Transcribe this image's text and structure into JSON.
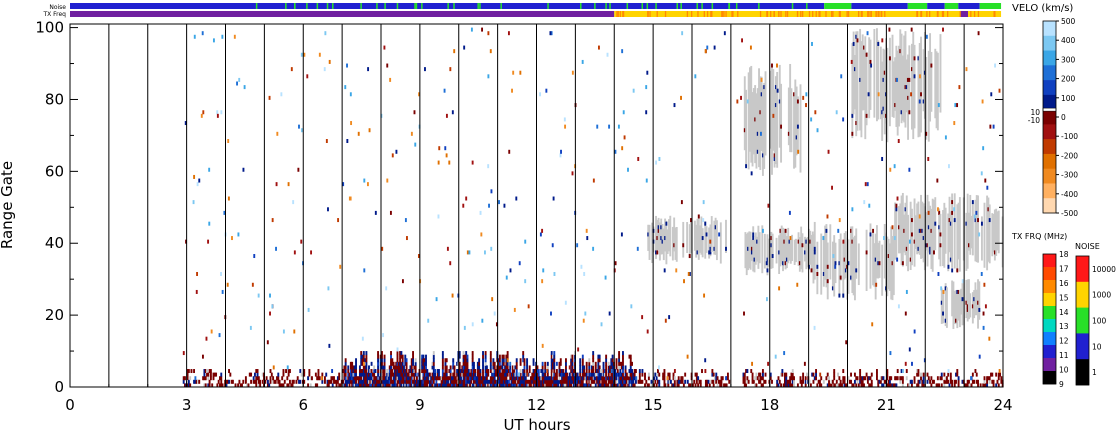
{
  "chart_data": {
    "type": "scatter",
    "title": "",
    "xlabel": "UT hours",
    "ylabel": "Range Gate",
    "xlim": [
      0,
      24
    ],
    "ylim": [
      0,
      101
    ],
    "x_ticks": [
      0,
      3,
      6,
      9,
      12,
      15,
      18,
      21,
      24
    ],
    "y_ticks": [
      0,
      20,
      40,
      60,
      80,
      100
    ],
    "vertical_hour_lines": [
      1,
      2,
      3,
      4,
      5,
      6,
      7,
      8,
      9,
      10,
      11,
      12,
      13,
      14,
      15,
      16,
      17,
      18,
      19,
      20,
      21,
      22,
      23
    ],
    "top_strips": {
      "noise_label": "Noise",
      "txfreq_label": "TX Freq",
      "noise_segments": [
        {
          "from": 0,
          "to": 19.4,
          "class": "10"
        },
        {
          "from": 19.4,
          "to": 20.1,
          "class": "100"
        },
        {
          "from": 20.1,
          "to": 21.55,
          "class": "10"
        },
        {
          "from": 21.55,
          "to": 22.05,
          "class": "100"
        },
        {
          "from": 22.05,
          "to": 22.5,
          "class": "10"
        },
        {
          "from": 22.5,
          "to": 22.85,
          "class": "100"
        },
        {
          "from": 22.85,
          "to": 23.4,
          "class": "10"
        },
        {
          "from": 23.4,
          "to": 23.95,
          "class": "100"
        }
      ],
      "txfreq_segments": [
        {
          "from": 0,
          "to": 14.0,
          "mhz": "10"
        },
        {
          "from": 14.0,
          "to": 22.9,
          "mhz": "15"
        },
        {
          "from": 22.9,
          "to": 23.1,
          "mhz": "10"
        },
        {
          "from": 23.1,
          "to": 23.95,
          "mhz": "15"
        }
      ]
    },
    "velocity_scale": {
      "label": "VELO (km/s)",
      "ticks": [
        "500",
        "400",
        "300",
        "200",
        "100",
        "0",
        "-100",
        "-200",
        "-300",
        "-400",
        "-500"
      ],
      "inset_ticks": [
        "10",
        "-10"
      ],
      "colors": [
        "#b8e2ff",
        "#7cc8f2",
        "#3aa6e6",
        "#1e6fd6",
        "#1040c0",
        "#001a8a",
        "#7a0000",
        "#a01010",
        "#c03a00",
        "#e07000",
        "#f08a20",
        "#ffb060",
        "#ffd8b0"
      ]
    },
    "txfreq_scale": {
      "label": "TX FRQ (MHz)",
      "ticks": [
        "18",
        "17",
        "16",
        "15",
        "14",
        "13",
        "12",
        "11",
        "10",
        "9"
      ],
      "colors": [
        "#ff1818",
        "#ff4a00",
        "#ff8a00",
        "#ffd400",
        "#28e028",
        "#00d8c0",
        "#1080ff",
        "#2020d0",
        "#7020a0",
        "#000000"
      ]
    },
    "noise_scale": {
      "label": "NOISE",
      "ticks": [
        "10000",
        "1000",
        "100",
        "10",
        "1"
      ],
      "colors": [
        "#ff1818",
        "#ffd400",
        "#28e028",
        "#2020d0",
        "#000000"
      ]
    },
    "ground_scatter_regions": [
      {
        "x0": 14.85,
        "x1": 16.9,
        "y0": 34,
        "y1": 48
      },
      {
        "x0": 17.35,
        "x1": 19.1,
        "y0": 31,
        "y1": 45
      },
      {
        "x0": 19.1,
        "x1": 21.2,
        "y0": 24,
        "y1": 46
      },
      {
        "x0": 21.2,
        "x1": 24.0,
        "y0": 32,
        "y1": 54
      },
      {
        "x0": 17.3,
        "x1": 18.8,
        "y0": 58,
        "y1": 90
      },
      {
        "x0": 20.1,
        "x1": 22.4,
        "y0": 68,
        "y1": 100
      },
      {
        "x0": 22.4,
        "x1": 23.4,
        "y0": 16,
        "y1": 30
      }
    ],
    "near_range_band": {
      "x0": 2.9,
      "x1": 24.0,
      "y0": 0,
      "y1": 11
    },
    "sparse_scatter_gates": [
      2,
      100
    ]
  }
}
